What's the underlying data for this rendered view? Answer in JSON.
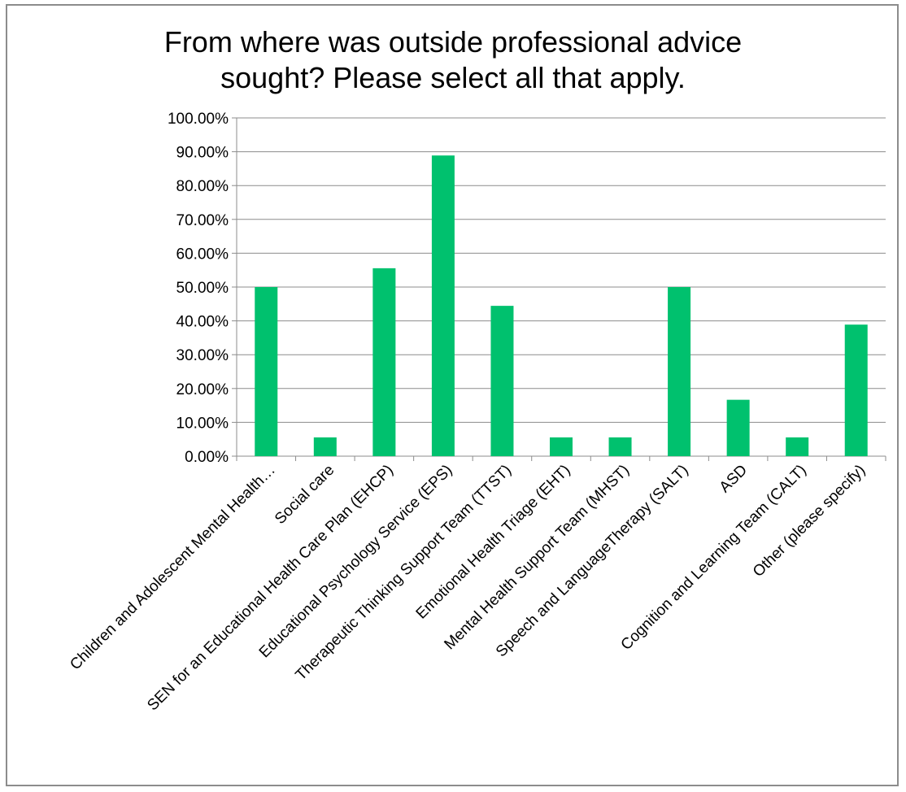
{
  "chart_data": {
    "type": "bar",
    "title_lines": [
      "From where was outside professional advice",
      "sought? Please select all that apply."
    ],
    "categories": [
      "Children and Adolescent Mental Health…",
      "Social care",
      "SEN for an Educational Health Care Plan (EHCP)",
      "Educational Psychology Service (EPS)",
      "Therapeutic Thinking Support Team (TTST)",
      "Emotional Health Triage (EHT)",
      "Mental Health Support Team (MHST)",
      "Speech and LanguageTherapy (SALT)",
      "ASD",
      "Cognition and Learning Team (CALT)",
      "Other (please specify)"
    ],
    "values": [
      50.0,
      5.56,
      55.56,
      88.89,
      44.44,
      5.56,
      5.56,
      50.0,
      16.67,
      5.56,
      38.89
    ],
    "ylim": [
      0,
      100
    ],
    "y_ticks": [
      "0.00%",
      "10.00%",
      "20.00%",
      "30.00%",
      "40.00%",
      "50.00%",
      "60.00%",
      "70.00%",
      "80.00%",
      "90.00%",
      "100.00%"
    ],
    "xlabel": "",
    "ylabel": "",
    "grid": true,
    "legend": "none",
    "colors": {
      "bar": "#00c16e",
      "grid": "#8c8c8c",
      "axis": "#8c8c8c",
      "frame": "#8c8c8c"
    }
  }
}
